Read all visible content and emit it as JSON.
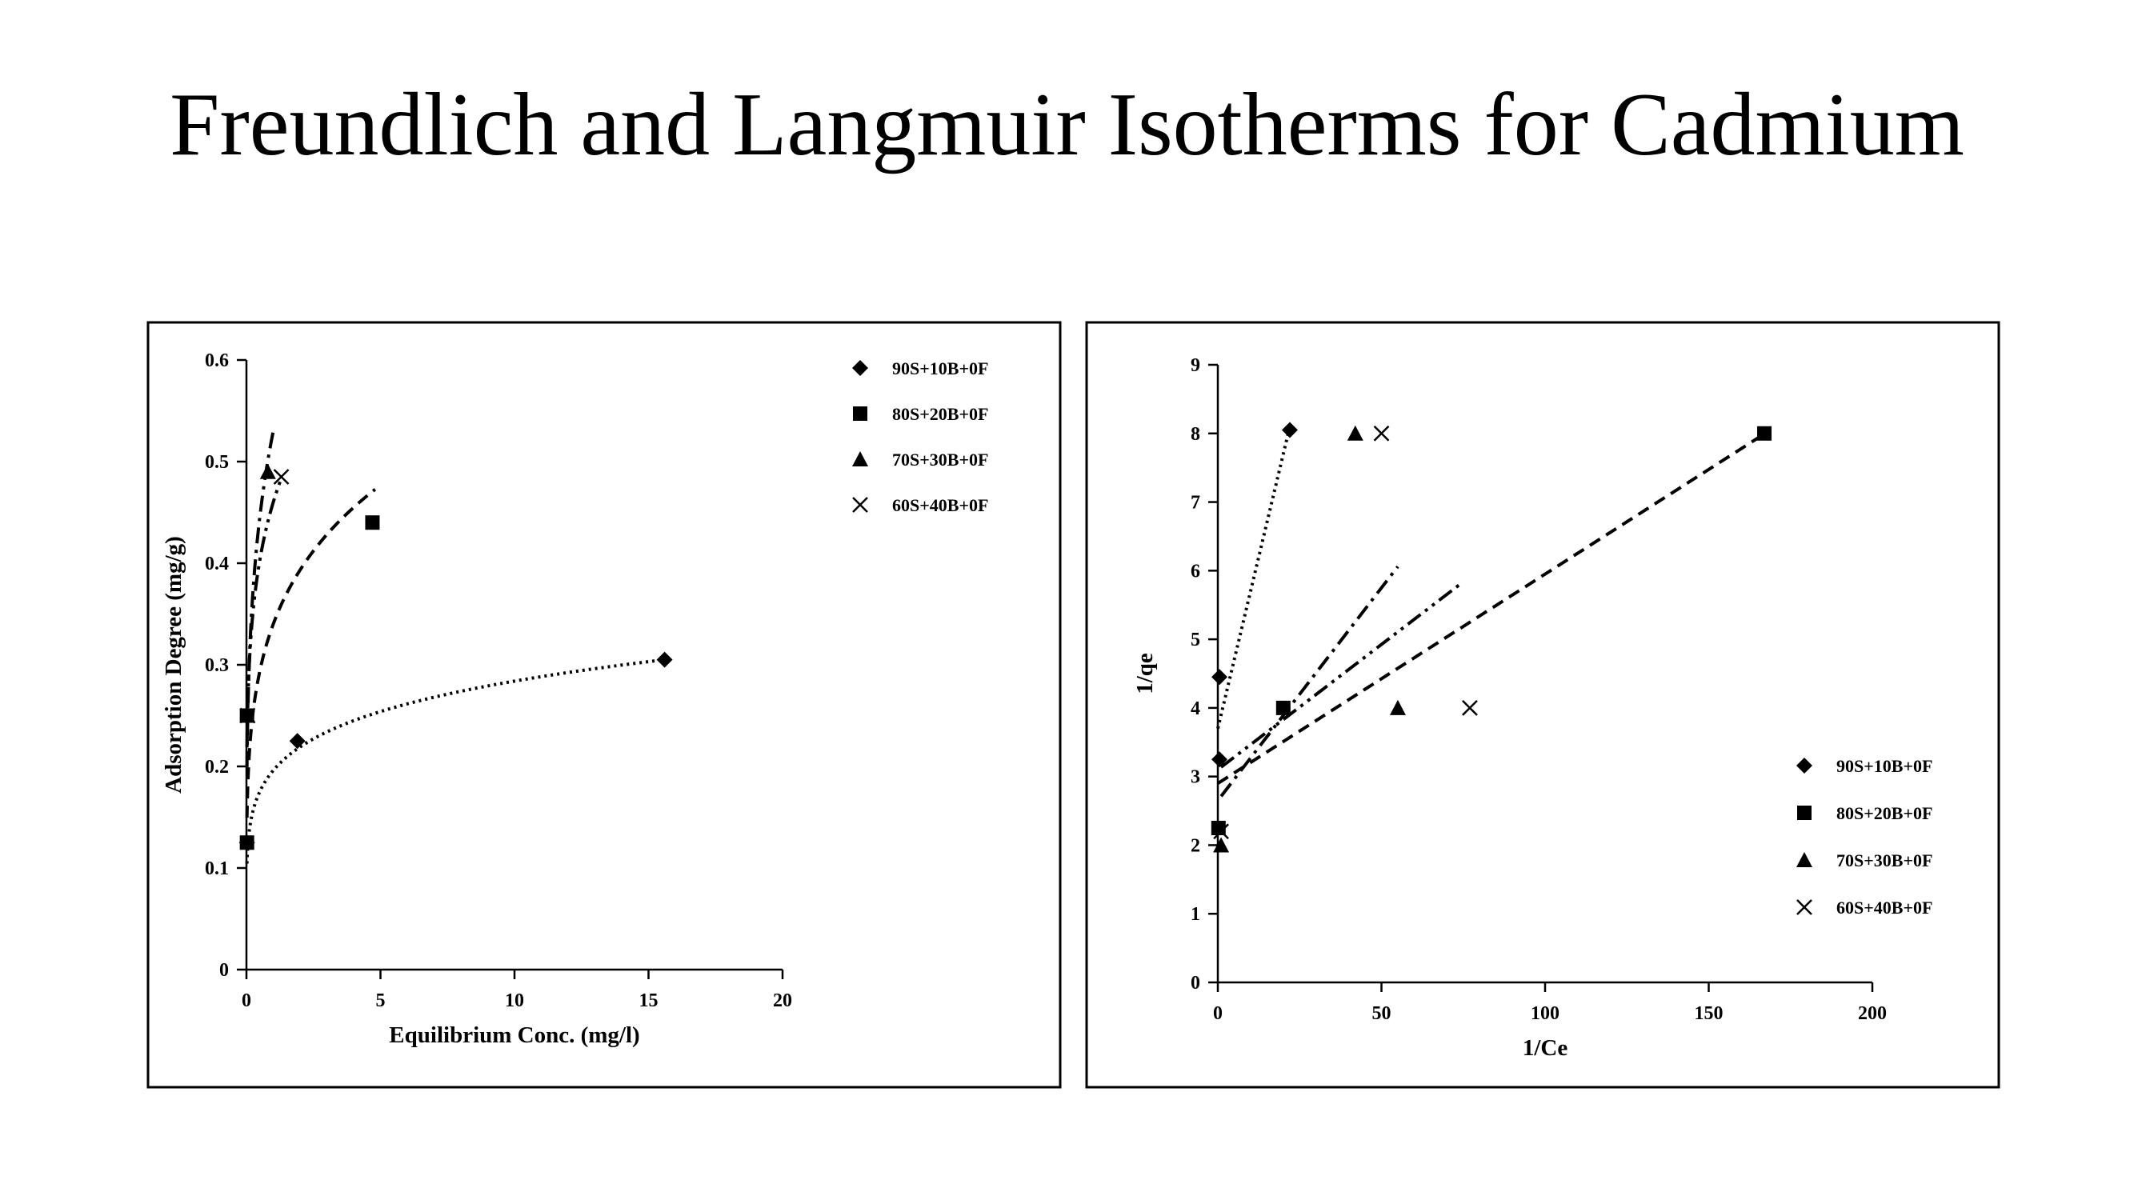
{
  "title": "Freundlich and Langmuir Isotherms for Cadmium",
  "chart_data": [
    {
      "type": "scatter",
      "xlabel": "Equilibrium Conc. (mg/l)",
      "ylabel": "Adsorption Degree (mg/g)",
      "xlim": [
        0,
        20
      ],
      "ylim": [
        0,
        0.6
      ],
      "xticks": [
        "0",
        "5",
        "10",
        "15",
        "20"
      ],
      "yticks": [
        "0",
        "0.1",
        "0.2",
        "0.3",
        "0.4",
        "0.5",
        "0.6"
      ],
      "legend_position": "top-right",
      "grid": false,
      "series": [
        {
          "name": "90S+10B+0F",
          "marker": "diamond",
          "line": "dotted",
          "trendline": "power",
          "points": [
            [
              0.02,
              0.125
            ],
            [
              1.9,
              0.225
            ],
            [
              15.6,
              0.305
            ]
          ],
          "fit": {
            "k": 0.196,
            "n": 0.161,
            "xmin": 0.02,
            "xmax": 15.6
          }
        },
        {
          "name": "80S+20B+0F",
          "marker": "square",
          "line": "dashed",
          "trendline": "power",
          "points": [
            [
              0.02,
              0.125
            ],
            [
              0.02,
              0.25
            ],
            [
              4.7,
              0.44
            ]
          ],
          "fit": {
            "k": 0.34,
            "n": 0.21,
            "xmin": 0.02,
            "xmax": 4.8
          }
        },
        {
          "name": "70S+30B+0F",
          "marker": "triangle",
          "line": "dashdot",
          "trendline": "power",
          "points": [
            [
              0.04,
              0.25
            ],
            [
              0.8,
              0.49
            ]
          ],
          "fit": {
            "k": 0.53,
            "n": 0.25,
            "xmin": 0.02,
            "xmax": 1.0
          }
        },
        {
          "name": "60S+40B+0F",
          "marker": "x",
          "line": "dashdotdot",
          "trendline": "power",
          "points": [
            [
              0.04,
              0.25
            ],
            [
              1.3,
              0.485
            ]
          ],
          "fit": {
            "k": 0.46,
            "n": 0.19,
            "xmin": 0.02,
            "xmax": 1.3
          }
        }
      ]
    },
    {
      "type": "scatter",
      "xlabel": "1/Ce",
      "ylabel": "1/qe",
      "xlim": [
        0,
        200
      ],
      "ylim": [
        0,
        9
      ],
      "xticks": [
        "0",
        "50",
        "100",
        "150",
        "200"
      ],
      "yticks": [
        "0",
        "1",
        "2",
        "3",
        "4",
        "5",
        "6",
        "7",
        "8",
        "9"
      ],
      "legend_position": "bottom-right",
      "grid": false,
      "series": [
        {
          "name": "90S+10B+0F",
          "marker": "diamond",
          "line": "dotted",
          "trendline": "linear",
          "points": [
            [
              0.5,
              3.25
            ],
            [
              0.5,
              4.45
            ],
            [
              22,
              8.05
            ]
          ],
          "fit": {
            "slope": 0.2,
            "intercept": 3.7,
            "xmin": 0,
            "xmax": 22
          }
        },
        {
          "name": "80S+20B+0F",
          "marker": "square",
          "line": "dashed",
          "trendline": "linear",
          "points": [
            [
              0.2,
              2.25
            ],
            [
              20,
              4.0
            ],
            [
              167,
              8.0
            ]
          ],
          "fit": {
            "slope": 0.0305,
            "intercept": 2.9,
            "xmin": 0,
            "xmax": 167
          }
        },
        {
          "name": "70S+30B+0F",
          "marker": "triangle",
          "line": "dashdot",
          "trendline": "linear",
          "points": [
            [
              1,
              2.0
            ],
            [
              42,
              8.0
            ],
            [
              55,
              4.0
            ]
          ],
          "fit": {
            "slope": 0.062,
            "intercept": 2.65,
            "xmin": 1,
            "xmax": 55
          }
        },
        {
          "name": "60S+40B+0F",
          "marker": "x",
          "line": "dashdotdot",
          "trendline": "linear",
          "points": [
            [
              1,
              2.2
            ],
            [
              50,
              8.0
            ],
            [
              77,
              4.0
            ]
          ],
          "fit": {
            "slope": 0.0365,
            "intercept": 3.1,
            "xmin": 1,
            "xmax": 74
          }
        }
      ]
    }
  ]
}
